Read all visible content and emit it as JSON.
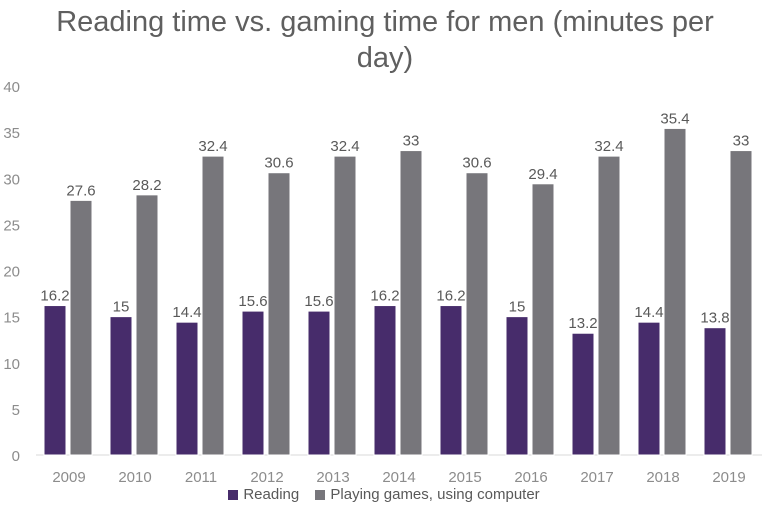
{
  "chart_data": {
    "type": "bar",
    "title": "Reading time vs. gaming time for men (minutes per day)",
    "categories": [
      "2009",
      "2010",
      "2011",
      "2012",
      "2013",
      "2014",
      "2015",
      "2016",
      "2017",
      "2018",
      "2019"
    ],
    "series": [
      {
        "name": "Reading",
        "color": "#472c6b",
        "values": [
          16.2,
          15,
          14.4,
          15.6,
          15.6,
          16.2,
          16.2,
          15,
          13.2,
          14.4,
          13.8
        ]
      },
      {
        "name": "Playing games, using computer",
        "color": "#77767b",
        "values": [
          27.6,
          28.2,
          32.4,
          30.6,
          32.4,
          33,
          30.6,
          29.4,
          32.4,
          35.4,
          33
        ]
      }
    ],
    "ylim": [
      0,
      40
    ],
    "yticks": [
      0,
      5,
      10,
      15,
      20,
      25,
      30,
      35,
      40
    ],
    "xlabel": "",
    "ylabel": "",
    "grid": false,
    "legend": "bottom",
    "data_labels": true
  }
}
